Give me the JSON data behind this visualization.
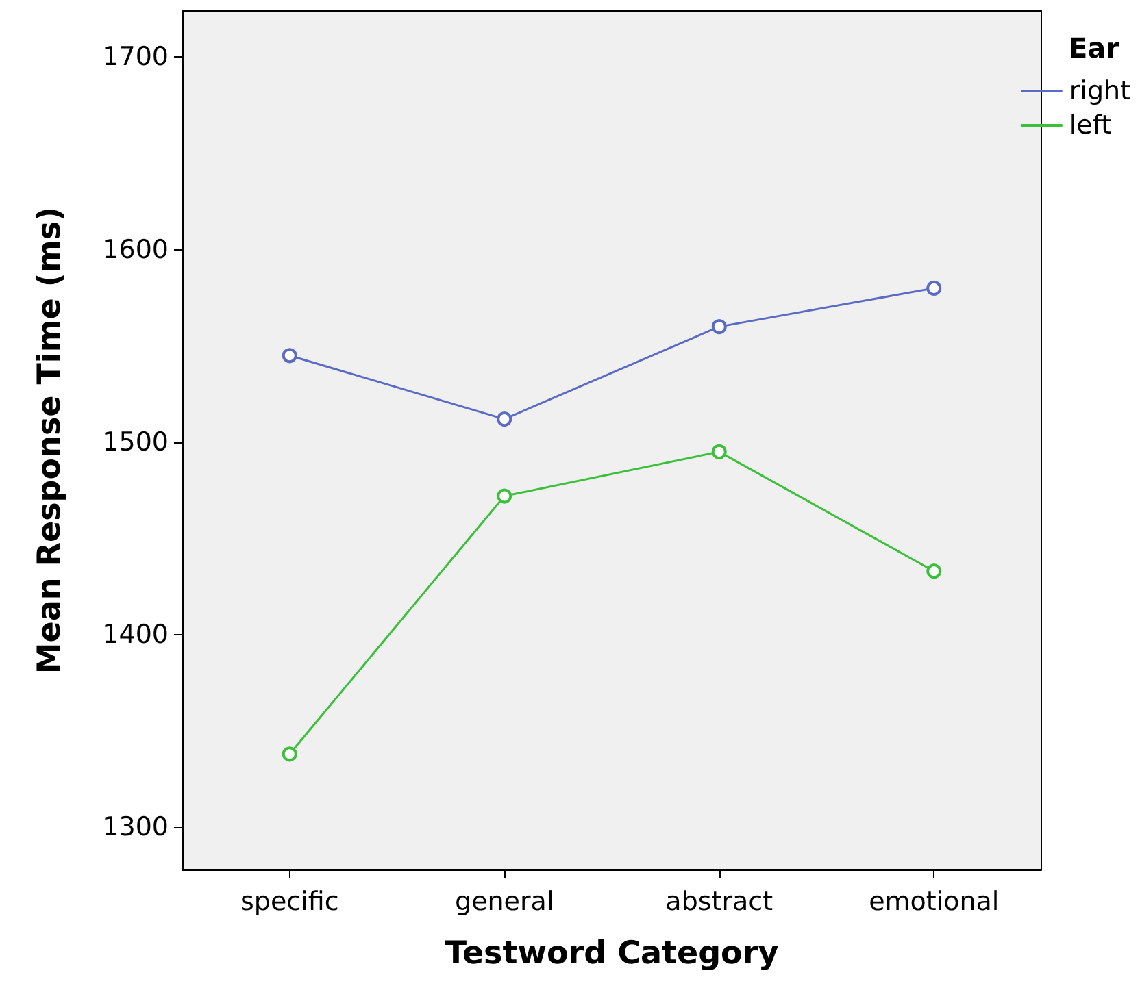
{
  "chart_data": {
    "type": "line",
    "xlabel": "Testword Category",
    "ylabel": "Mean Response Time (ms)",
    "legend_title": "Ear",
    "categories": [
      "specific",
      "general",
      "abstract",
      "emotional"
    ],
    "series": [
      {
        "name": "right",
        "color": "#5b6bc4",
        "values": [
          1545,
          1512,
          1560,
          1580
        ]
      },
      {
        "name": "left",
        "color": "#3cc03c",
        "values": [
          1338,
          1472,
          1495,
          1433
        ]
      }
    ],
    "ylim": [
      1278,
      1724
    ],
    "yticks": [
      1300,
      1400,
      1500,
      1600,
      1700
    ],
    "grid": false,
    "legend": "top right",
    "marker": "circle",
    "line_style": "solid"
  }
}
